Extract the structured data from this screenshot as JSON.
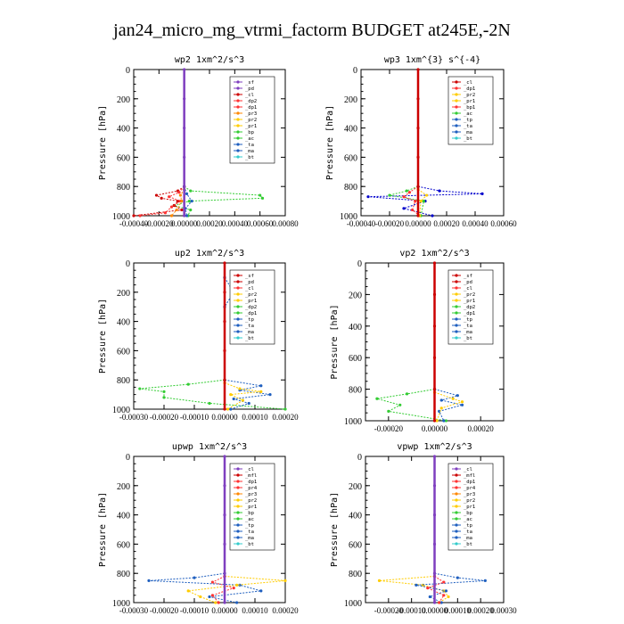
{
  "figure_title": "jan24_micro_mg_vtrmi_factorm  BUDGET at245E,-2N",
  "chart_data": [
    {
      "type": "line",
      "title": "wp2   1xm^2/s^3",
      "ylabel": "Pressure [hPa]",
      "xlim": [
        -0.0004,
        0.0008
      ],
      "ylim": [
        1000,
        0
      ],
      "xticks": [
        "-0.00040",
        "-0.00020",
        "0.00000",
        "0.00020",
        "0.00040",
        "0.00060",
        "0.00080"
      ],
      "xtick_values": [
        -0.0004,
        -0.0002,
        0,
        0.0002,
        0.0004,
        0.0006,
        0.0008
      ],
      "yticks": [
        "0",
        "200",
        "400",
        "600",
        "800",
        "1000"
      ],
      "legend": [
        {
          "name": "_sf",
          "color": "#7f3fbf"
        },
        {
          "name": "_pd",
          "color": "#7f3fbf"
        },
        {
          "name": "_cl",
          "color": "#cc0000"
        },
        {
          "name": "_dp2",
          "color": "#ff3333"
        },
        {
          "name": "_dp1",
          "color": "#ff3333"
        },
        {
          "name": "_pr3",
          "color": "#ff8800"
        },
        {
          "name": "_pr2",
          "color": "#ffcc00"
        },
        {
          "name": "_pr1",
          "color": "#ffcc00"
        },
        {
          "name": "_bp",
          "color": "#33cc33"
        },
        {
          "name": "_ac",
          "color": "#33cc33"
        },
        {
          "name": "_ta",
          "color": "#1f5fbf"
        },
        {
          "name": "_ma",
          "color": "#1f5fbf"
        },
        {
          "name": "_bt",
          "color": "#33cccc"
        }
      ],
      "series": [
        {
          "color": "#33cc33",
          "y": [
            800,
            830,
            860,
            880,
            900,
            930,
            960,
            1000
          ],
          "x": [
            0,
            5e-05,
            0.0006,
            0.00062,
            4e-05,
            -8e-05,
            5e-05,
            3e-05
          ]
        },
        {
          "color": "#cc0000",
          "y": [
            800,
            830,
            860,
            880,
            900,
            930,
            960,
            1000
          ],
          "x": [
            0,
            -5e-05,
            -0.00022,
            -0.00018,
            -5e-05,
            -8e-05,
            -2e-05,
            -0.0004
          ]
        },
        {
          "color": "#ff3333",
          "y": [
            800,
            840,
            870,
            900,
            940,
            980,
            1000
          ],
          "x": [
            0,
            -4e-05,
            -0.00012,
            -3e-05,
            -0.0001,
            -0.00015,
            -0.00035
          ]
        },
        {
          "color": "#ff8800",
          "y": [
            820,
            860,
            900,
            960,
            1000
          ],
          "x": [
            0,
            -3e-05,
            -2e-05,
            -6e-05,
            -0.0001
          ]
        },
        {
          "color": "#1f5fbf",
          "y": [
            800,
            850,
            900,
            950,
            1000
          ],
          "x": [
            0,
            2e-05,
            6e-05,
            1e-05,
            2e-05
          ]
        },
        {
          "color": "#7f3fbf",
          "y": [
            0,
            200,
            400,
            600,
            800,
            1000
          ],
          "x": [
            0,
            0,
            0,
            0,
            0,
            0
          ]
        }
      ]
    },
    {
      "type": "line",
      "title": "wp3   1xm^{3} s^{-4}",
      "ylabel": "Pressure [hPa]",
      "xlim": [
        -0.0004,
        0.0006
      ],
      "ylim": [
        1000,
        0
      ],
      "xticks": [
        "-0.00040",
        "-0.00020",
        "0.00000",
        "0.00020",
        "0.00040",
        "0.00060"
      ],
      "xtick_values": [
        -0.0004,
        -0.0002,
        0,
        0.0002,
        0.0004,
        0.0006
      ],
      "yticks": [
        "0",
        "200",
        "400",
        "600",
        "800",
        "1000"
      ],
      "legend": [
        {
          "name": "_cl",
          "color": "#cc0000"
        },
        {
          "name": "_dp1",
          "color": "#ff3333"
        },
        {
          "name": "_pr2",
          "color": "#ffcc00"
        },
        {
          "name": "_pr1",
          "color": "#ffcc00"
        },
        {
          "name": "_bp1",
          "color": "#ff3333"
        },
        {
          "name": "_ac",
          "color": "#33cc33"
        },
        {
          "name": "_tp",
          "color": "#1f5fbf"
        },
        {
          "name": "_ta",
          "color": "#1f5fbf"
        },
        {
          "name": "_ma",
          "color": "#1f5fbf"
        },
        {
          "name": "_bt",
          "color": "#33cccc"
        }
      ],
      "series": [
        {
          "color": "#0000cc",
          "y": [
            800,
            830,
            850,
            870,
            900,
            950,
            1000
          ],
          "x": [
            0,
            0.00015,
            0.00045,
            -0.00035,
            5e-05,
            -0.0001,
            0.0001
          ]
        },
        {
          "color": "#33cc33",
          "y": [
            800,
            830,
            860,
            900,
            1000
          ],
          "x": [
            0,
            -8e-05,
            -0.0002,
            4e-05,
            2e-05
          ]
        },
        {
          "color": "#ff3333",
          "y": [
            800,
            840,
            870,
            900,
            960,
            1000
          ],
          "x": [
            0,
            -6e-05,
            -0.0001,
            -2e-05,
            -4e-05,
            1e-05
          ]
        },
        {
          "color": "#ffcc00",
          "y": [
            820,
            860,
            900,
            1000
          ],
          "x": [
            0,
            6e-05,
            2e-05,
            1e-05
          ]
        },
        {
          "color": "#cc0000",
          "y": [
            0,
            200,
            400,
            600,
            800,
            1000
          ],
          "x": [
            0,
            0,
            0,
            0,
            0,
            0
          ]
        }
      ]
    },
    {
      "type": "line",
      "title": "up2   1xm^2/s^3",
      "ylabel": "Pressure [hPa]",
      "xlim": [
        -0.0003,
        0.0002
      ],
      "ylim": [
        1000,
        0
      ],
      "xticks": [
        "-0.00030",
        "-0.00020",
        "-0.00010",
        "0.00000",
        "0.00010",
        "0.00020"
      ],
      "xtick_values": [
        -0.0003,
        -0.0002,
        -0.0001,
        0,
        0.0001,
        0.0002
      ],
      "yticks": [
        "0",
        "200",
        "400",
        "600",
        "800",
        "1000"
      ],
      "legend": [
        {
          "name": "_sf",
          "color": "#cc0000"
        },
        {
          "name": "_pd",
          "color": "#cc0000"
        },
        {
          "name": "_cl",
          "color": "#ff3333"
        },
        {
          "name": "_pr2",
          "color": "#ffcc00"
        },
        {
          "name": "_pr1",
          "color": "#ffcc00"
        },
        {
          "name": "_dp2",
          "color": "#33cc33"
        },
        {
          "name": "_dp1",
          "color": "#33cc33"
        },
        {
          "name": "_tp",
          "color": "#1f5fbf"
        },
        {
          "name": "_ta",
          "color": "#1f5fbf"
        },
        {
          "name": "_ma",
          "color": "#1f5fbf"
        },
        {
          "name": "_bt",
          "color": "#33cccc"
        }
      ],
      "series": [
        {
          "color": "#33cc33",
          "y": [
            800,
            830,
            860,
            880,
            920,
            960,
            1000
          ],
          "x": [
            0,
            -0.00012,
            -0.00028,
            -0.0002,
            -0.0002,
            -5e-05,
            0.0002
          ]
        },
        {
          "color": "#1f5fbf",
          "y": [
            800,
            840,
            870,
            900,
            930,
            960,
            1000
          ],
          "x": [
            0,
            0.00012,
            5e-05,
            0.00015,
            3e-05,
            8e-05,
            2e-05
          ]
        },
        {
          "color": "#ffcc00",
          "y": [
            820,
            860,
            880,
            900,
            940,
            1000
          ],
          "x": [
            0,
            5e-05,
            0.00012,
            2e-05,
            6e-05,
            1e-05
          ]
        },
        {
          "color": "#1f5fbf",
          "y": [
            100,
            200,
            300
          ],
          "x": [
            0,
            3e-05,
            0
          ]
        },
        {
          "color": "#cc0000",
          "y": [
            0,
            200,
            400,
            600,
            800,
            1000
          ],
          "x": [
            0,
            0,
            0,
            0,
            0,
            0
          ]
        }
      ]
    },
    {
      "type": "line",
      "title": "vp2   1xm^2/s^3",
      "ylabel": "Pressure [hPa]",
      "xlim": [
        -0.0003,
        0.0003
      ],
      "ylim": [
        1000,
        0
      ],
      "xticks": [
        "-0.00020",
        "0.00000",
        "0.00020"
      ],
      "xtick_values": [
        -0.0002,
        0,
        0.0002
      ],
      "yticks": [
        "0",
        "200",
        "400",
        "600",
        "800",
        "1000"
      ],
      "legend": [
        {
          "name": "_sf",
          "color": "#cc0000"
        },
        {
          "name": "_pd",
          "color": "#cc0000"
        },
        {
          "name": "_cl",
          "color": "#ff3333"
        },
        {
          "name": "_pr2",
          "color": "#ffcc00"
        },
        {
          "name": "_pr1",
          "color": "#ffcc00"
        },
        {
          "name": "_dp2",
          "color": "#33cc33"
        },
        {
          "name": "_dp1",
          "color": "#33cc33"
        },
        {
          "name": "_tp",
          "color": "#1f5fbf"
        },
        {
          "name": "_ta",
          "color": "#1f5fbf"
        },
        {
          "name": "_ma",
          "color": "#1f5fbf"
        },
        {
          "name": "_bt",
          "color": "#33cccc"
        }
      ],
      "series": [
        {
          "color": "#33cc33",
          "y": [
            800,
            830,
            860,
            900,
            940,
            1000
          ],
          "x": [
            0,
            -0.00012,
            -0.00025,
            -0.00015,
            -0.0002,
            5e-05
          ]
        },
        {
          "color": "#1f5fbf",
          "y": [
            800,
            840,
            870,
            900,
            940,
            1000
          ],
          "x": [
            0,
            0.0001,
            3e-05,
            0.00012,
            2e-05,
            4e-05
          ]
        },
        {
          "color": "#ffcc00",
          "y": [
            820,
            860,
            880,
            920,
            1000
          ],
          "x": [
            0,
            8e-05,
            0.00012,
            3e-05,
            1e-05
          ]
        },
        {
          "color": "#cc0000",
          "y": [
            0,
            200,
            400,
            600,
            800,
            1000
          ],
          "x": [
            0,
            0,
            0,
            0,
            0,
            0
          ]
        }
      ]
    },
    {
      "type": "line",
      "title": "upwp   1xm^2/s^3",
      "ylabel": "Pressure [hPa]",
      "xlim": [
        -0.0003,
        0.0002
      ],
      "ylim": [
        1000,
        0
      ],
      "xticks": [
        "-0.00030",
        "-0.00020",
        "-0.00010",
        "0.00000",
        "0.00010",
        "0.00020"
      ],
      "xtick_values": [
        -0.0003,
        -0.0002,
        -0.0001,
        0,
        0.0001,
        0.0002
      ],
      "yticks": [
        "0",
        "200",
        "400",
        "600",
        "800",
        "1000"
      ],
      "legend": [
        {
          "name": "_cl",
          "color": "#7f3fbf"
        },
        {
          "name": "_mfl",
          "color": "#cc0000"
        },
        {
          "name": "_dp1",
          "color": "#ff3333"
        },
        {
          "name": "_pr4",
          "color": "#ff3333"
        },
        {
          "name": "_pr3",
          "color": "#ff8800"
        },
        {
          "name": "_pr2",
          "color": "#ffcc00"
        },
        {
          "name": "_pr1",
          "color": "#ffcc00"
        },
        {
          "name": "_bp",
          "color": "#33cc33"
        },
        {
          "name": "_ac",
          "color": "#33cc33"
        },
        {
          "name": "_tp",
          "color": "#1f5fbf"
        },
        {
          "name": "_ta",
          "color": "#1f5fbf"
        },
        {
          "name": "_ma",
          "color": "#1f5fbf"
        },
        {
          "name": "_bt",
          "color": "#33cccc"
        }
      ],
      "series": [
        {
          "color": "#1f5fbf",
          "y": [
            800,
            830,
            850,
            880,
            920,
            960,
            1000
          ],
          "x": [
            0,
            -0.0001,
            -0.00025,
            5e-05,
            0.00012,
            -5e-05,
            4e-05
          ]
        },
        {
          "color": "#ffcc00",
          "y": [
            820,
            850,
            880,
            920,
            960,
            1000
          ],
          "x": [
            0,
            0.0002,
            4e-05,
            -0.00012,
            -8e-05,
            -3e-05
          ]
        },
        {
          "color": "#ff3333",
          "y": [
            820,
            860,
            900,
            950,
            1000
          ],
          "x": [
            0,
            -4e-05,
            3e-05,
            -4e-05,
            -2e-05
          ]
        },
        {
          "color": "#7f3fbf",
          "y": [
            0,
            200,
            400,
            600,
            800,
            1000
          ],
          "x": [
            0,
            0,
            0,
            0,
            0,
            0
          ]
        }
      ]
    },
    {
      "type": "line",
      "title": "vpwp   1xm^2/s^3",
      "ylabel": "Pressure [hPa]",
      "xlim": [
        -0.0003,
        0.0003
      ],
      "ylim": [
        1000,
        0
      ],
      "xticks": [
        "-0.00020",
        "-0.00010",
        "0.00000",
        "0.00010",
        "0.00020",
        "0.00030"
      ],
      "xtick_values": [
        -0.0002,
        -0.0001,
        0,
        0.0001,
        0.0002,
        0.0003
      ],
      "yticks": [
        "0",
        "200",
        "400",
        "600",
        "800",
        "1000"
      ],
      "legend": [
        {
          "name": "_cl",
          "color": "#7f3fbf"
        },
        {
          "name": "_mfl",
          "color": "#cc0000"
        },
        {
          "name": "_dp1",
          "color": "#ff3333"
        },
        {
          "name": "_pr4",
          "color": "#ff3333"
        },
        {
          "name": "_pr3",
          "color": "#ff8800"
        },
        {
          "name": "_pr2",
          "color": "#ffcc00"
        },
        {
          "name": "_pr1",
          "color": "#ffcc00"
        },
        {
          "name": "_bp",
          "color": "#33cc33"
        },
        {
          "name": "_ac",
          "color": "#33cc33"
        },
        {
          "name": "_tp",
          "color": "#1f5fbf"
        },
        {
          "name": "_ta",
          "color": "#1f5fbf"
        },
        {
          "name": "_ma",
          "color": "#1f5fbf"
        },
        {
          "name": "_bt",
          "color": "#33cccc"
        }
      ],
      "series": [
        {
          "color": "#ffcc00",
          "y": [
            820,
            850,
            880,
            920,
            960,
            1000
          ],
          "x": [
            0,
            -0.00024,
            -5e-05,
            4e-05,
            6e-05,
            2e-05
          ]
        },
        {
          "color": "#1f5fbf",
          "y": [
            800,
            830,
            850,
            880,
            920,
            960,
            1000
          ],
          "x": [
            0,
            0.0001,
            0.00022,
            -8e-05,
            5e-05,
            -2e-05,
            3e-05
          ]
        },
        {
          "color": "#ff3333",
          "y": [
            820,
            860,
            900,
            950,
            1000
          ],
          "x": [
            0,
            4e-05,
            -3e-05,
            4e-05,
            2e-05
          ]
        },
        {
          "color": "#7f3fbf",
          "y": [
            0,
            200,
            400,
            600,
            800,
            1000
          ],
          "x": [
            0,
            0,
            0,
            0,
            0,
            0
          ]
        }
      ]
    }
  ]
}
